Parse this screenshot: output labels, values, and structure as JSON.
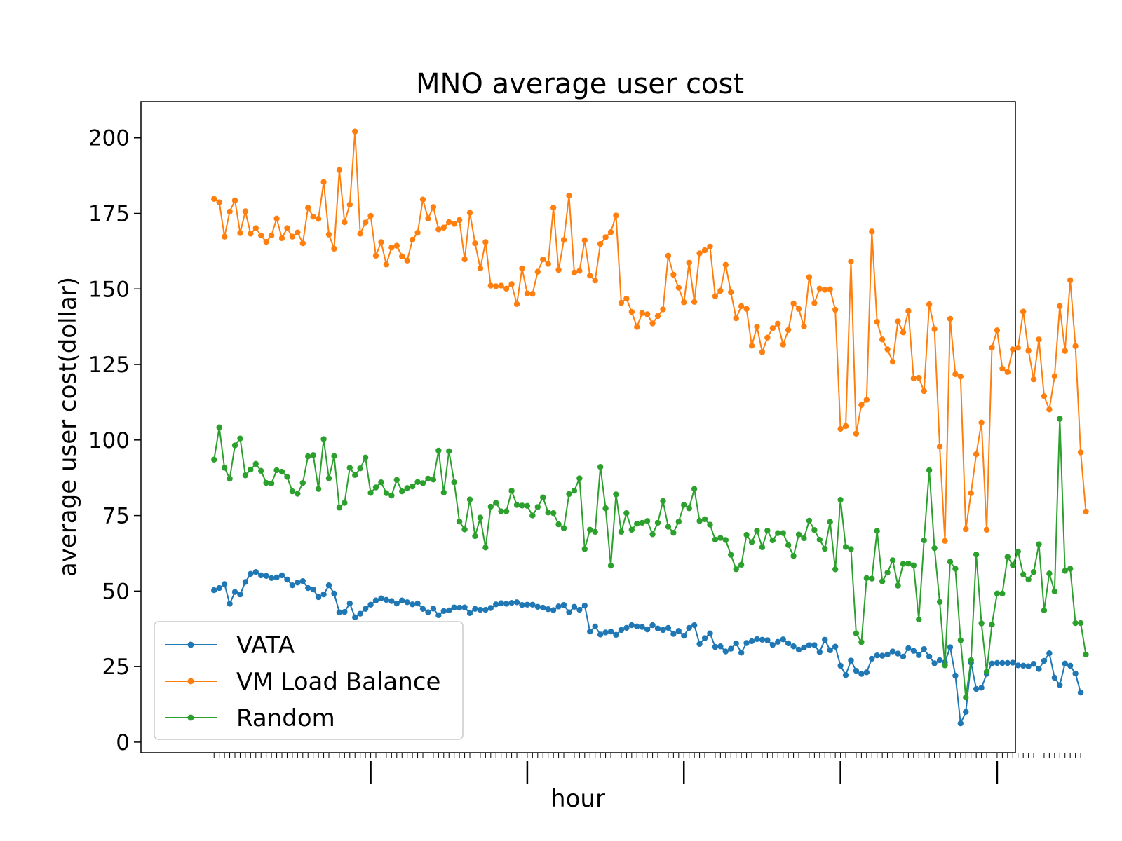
{
  "chart_data": {
    "type": "line",
    "title": "MNO average user cost",
    "xlabel": "hour",
    "ylabel": "average user cost(dollar)",
    "ylim": [
      -3.5,
      212
    ],
    "yticks": [
      0,
      25,
      50,
      75,
      100,
      125,
      150,
      175,
      200
    ],
    "xlim": [
      -14,
      153.5
    ],
    "grid": false,
    "legend_position": "lower-left",
    "series": [
      {
        "name": "VATA",
        "color": "#1f77b4",
        "values": [
          50.3,
          51.0,
          52.3,
          45.8,
          49.7,
          48.9,
          53.0,
          55.7,
          56.3,
          55.2,
          55.0,
          54.3,
          54.5,
          55.2,
          53.8,
          51.9,
          52.8,
          53.3,
          51.0,
          50.5,
          48.0,
          48.9,
          51.9,
          49.2,
          43.0,
          43.1,
          45.9,
          41.3,
          42.5,
          44.1,
          45.5,
          46.9,
          47.6,
          47.1,
          46.7,
          45.9,
          46.9,
          46.3,
          45.6,
          45.9,
          44.1,
          43.0,
          44.2,
          42.0,
          43.4,
          43.6,
          44.6,
          44.5,
          44.6,
          42.7,
          44.1,
          43.8,
          43.8,
          44.4,
          45.6,
          46.0,
          45.8,
          46.1,
          46.3,
          45.4,
          45.5,
          45.5,
          44.8,
          44.5,
          44.0,
          43.7,
          44.9,
          45.4,
          43.0,
          44.8,
          43.8,
          45.2,
          36.6,
          38.3,
          35.6,
          36.3,
          36.6,
          35.5,
          37.1,
          37.8,
          38.7,
          38.3,
          38.1,
          37.3,
          38.7,
          37.6,
          37.1,
          37.8,
          35.8,
          36.8,
          35.2,
          37.8,
          38.7,
          32.5,
          34.4,
          36.0,
          31.5,
          31.7,
          30.0,
          30.9,
          32.7,
          29.6,
          32.8,
          33.4,
          34.1,
          33.9,
          33.7,
          32.2,
          33.2,
          34.0,
          32.7,
          31.7,
          30.6,
          31.3,
          32.1,
          32.1,
          29.8,
          33.9,
          30.4,
          31.6,
          25.3,
          22.2,
          27.0,
          23.6,
          22.6,
          23.1,
          27.6,
          28.7,
          28.6,
          29.0,
          30.0,
          29.3,
          28.3,
          31.1,
          30.2,
          28.8,
          30.8,
          28.3,
          26.1,
          27.1,
          26.4,
          31.4,
          22.0,
          6.2,
          10.0,
          26.3,
          17.6,
          18.0,
          22.6,
          26.0,
          26.2,
          26.2,
          26.2,
          26.3,
          25.4,
          25.3,
          25.1,
          25.9,
          24.2,
          26.9,
          29.4,
          21.3,
          18.9,
          26.0,
          25.3,
          22.7,
          16.4
        ]
      },
      {
        "name": "VM Load Balance",
        "color": "#ff7f0e",
        "values": [
          179.8,
          178.7,
          167.3,
          175.6,
          179.3,
          168.5,
          175.7,
          168.3,
          170.1,
          167.7,
          165.6,
          167.7,
          173.3,
          166.8,
          170.1,
          167.3,
          168.7,
          165.1,
          176.9,
          173.9,
          173.2,
          185.4,
          168.0,
          163.3,
          189.3,
          172.1,
          177.9,
          202.1,
          168.3,
          172.0,
          174.2,
          161.0,
          165.5,
          158.1,
          163.7,
          164.3,
          160.8,
          159.4,
          166.3,
          168.6,
          179.6,
          173.3,
          177.1,
          169.7,
          170.3,
          172.1,
          171.5,
          172.8,
          159.8,
          175.2,
          165.1,
          156.8,
          165.5,
          151.1,
          150.9,
          151.1,
          150.1,
          151.6,
          145.0,
          156.8,
          148.5,
          148.4,
          155.7,
          159.8,
          158.3,
          176.9,
          156.3,
          166.2,
          180.9,
          155.4,
          156.0,
          166.1,
          154.4,
          152.8,
          164.9,
          167.1,
          168.8,
          174.3,
          145.4,
          146.8,
          142.4,
          137.4,
          142.0,
          141.6,
          138.6,
          141.0,
          143.2,
          161.0,
          154.7,
          150.4,
          145.6,
          158.7,
          145.7,
          161.8,
          162.8,
          164.0,
          147.6,
          149.4,
          158.0,
          148.9,
          140.3,
          144.3,
          143.4,
          131.2,
          137.5,
          129.1,
          133.9,
          137.0,
          138.5,
          131.6,
          136.4,
          145.2,
          143.4,
          137.6,
          153.9,
          145.3,
          150.1,
          149.7,
          149.9,
          143.1,
          103.7,
          104.6,
          159.1,
          102.1,
          111.6,
          113.3,
          169.0,
          139.1,
          133.3,
          130.0,
          125.9,
          139.3,
          135.6,
          142.7,
          120.4,
          120.6,
          116.2,
          144.9,
          136.7,
          97.8,
          66.6,
          140.1,
          121.8,
          121.0,
          70.5,
          82.4,
          95.3,
          105.8,
          70.3,
          130.6,
          136.3,
          123.6,
          122.5,
          130.0,
          130.5,
          142.5,
          129.6,
          120.1,
          133.3,
          114.5,
          110.1,
          121.1,
          144.3,
          129.5,
          152.9,
          131.1,
          95.9,
          76.3
        ]
      },
      {
        "name": "Random",
        "color": "#2ca02c",
        "values": [
          93.5,
          104.2,
          90.8,
          87.2,
          98.2,
          100.5,
          88.3,
          90.2,
          92.1,
          89.8,
          85.8,
          85.6,
          90.0,
          89.5,
          87.8,
          83.0,
          82.2,
          85.8,
          94.6,
          95.0,
          83.8,
          100.3,
          87.3,
          94.7,
          77.6,
          79.2,
          90.8,
          88.4,
          90.6,
          94.2,
          82.5,
          84.3,
          86.0,
          82.4,
          81.6,
          86.8,
          83.0,
          84.1,
          84.6,
          86.1,
          85.7,
          87.2,
          86.9,
          96.5,
          82.6,
          96.3,
          86.0,
          73.0,
          70.4,
          80.3,
          68.2,
          74.3,
          64.4,
          77.9,
          79.2,
          76.4,
          76.4,
          83.2,
          78.5,
          78.3,
          78.2,
          75.0,
          77.8,
          81.0,
          76.0,
          75.8,
          72.1,
          70.8,
          82.1,
          83.2,
          87.3,
          63.9,
          70.3,
          69.6,
          91.1,
          77.4,
          58.4,
          82.0,
          69.6,
          75.8,
          70.3,
          72.3,
          72.6,
          73.2,
          68.8,
          72.6,
          79.8,
          71.3,
          69.3,
          73.0,
          78.5,
          77.4,
          83.8,
          73.2,
          73.8,
          72.0,
          67.0,
          67.6,
          66.9,
          62.0,
          57.2,
          58.7,
          68.6,
          66.2,
          70.0,
          64.5,
          70.0,
          66.8,
          69.2,
          69.2,
          65.2,
          61.6,
          68.7,
          67.5,
          73.3,
          70.2,
          67.0,
          64.0,
          72.9,
          57.2,
          80.2,
          64.6,
          63.9,
          36.0,
          33.1,
          54.3,
          54.1,
          69.9,
          53.2,
          56.1,
          60.2,
          51.8,
          59.0,
          59.1,
          58.5,
          40.6,
          66.8,
          90.0,
          64.2,
          46.4,
          25.4,
          59.7,
          57.4,
          33.7,
          14.8,
          27.1,
          62.1,
          39.3,
          23.3,
          38.9,
          49.2,
          49.2,
          61.3,
          58.6,
          63.1,
          55.5,
          53.8,
          56.3,
          65.5,
          43.6,
          55.8,
          49.9,
          107.0,
          56.7,
          57.4,
          39.4,
          39.4,
          29.0
        ]
      }
    ]
  }
}
